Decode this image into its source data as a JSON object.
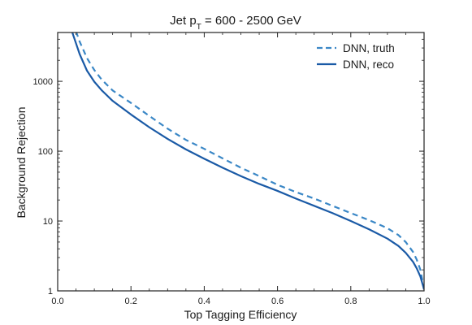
{
  "chart_data": {
    "type": "line",
    "title": "Jet p",
    "title_sub": "T",
    "title_rest": " = 600 - 2500 GeV",
    "xlabel": "Top Tagging Efficiency",
    "ylabel": "Background Rejection",
    "xlim": [
      0.0,
      1.0
    ],
    "ylim": [
      1,
      5000
    ],
    "yscale": "log",
    "xticks": [
      0.0,
      0.2,
      0.4,
      0.6,
      0.8,
      1.0
    ],
    "xtick_labels": [
      "0.0",
      "0.2",
      "0.4",
      "0.6",
      "0.8",
      "1.0"
    ],
    "yticks": [
      1,
      10,
      100,
      1000
    ],
    "ytick_labels": [
      "1",
      "10",
      "100",
      "1000"
    ],
    "grid": false,
    "legend_position": "top-right",
    "series": [
      {
        "name": "DNN, truth",
        "style": "dashed",
        "color": "#3a87c6",
        "x": [
          0.05,
          0.06,
          0.08,
          0.1,
          0.12,
          0.15,
          0.2,
          0.25,
          0.3,
          0.35,
          0.4,
          0.45,
          0.5,
          0.55,
          0.6,
          0.65,
          0.7,
          0.75,
          0.8,
          0.85,
          0.9,
          0.93,
          0.95,
          0.97,
          0.98,
          0.99,
          1.0
        ],
        "y": [
          5200,
          3700,
          2150,
          1450,
          1060,
          740,
          490,
          320,
          210,
          145,
          108,
          79,
          58,
          44,
          33,
          26,
          21,
          16.5,
          13,
          10.3,
          7.9,
          6.3,
          5.0,
          3.6,
          2.8,
          2.0,
          1.05
        ]
      },
      {
        "name": "DNN, reco",
        "style": "solid",
        "color": "#1a5aa6",
        "x": [
          0.04,
          0.05,
          0.06,
          0.08,
          0.1,
          0.12,
          0.15,
          0.2,
          0.25,
          0.3,
          0.35,
          0.4,
          0.45,
          0.5,
          0.55,
          0.6,
          0.65,
          0.7,
          0.75,
          0.8,
          0.85,
          0.9,
          0.93,
          0.95,
          0.97,
          0.98,
          0.99,
          1.0
        ],
        "y": [
          5000,
          3500,
          2450,
          1420,
          985,
          745,
          525,
          335,
          220,
          150,
          106,
          78,
          58,
          44,
          34,
          27,
          21,
          16.5,
          13,
          10,
          7.6,
          5.6,
          4.4,
          3.5,
          2.6,
          2.1,
          1.6,
          1.05
        ]
      }
    ]
  }
}
